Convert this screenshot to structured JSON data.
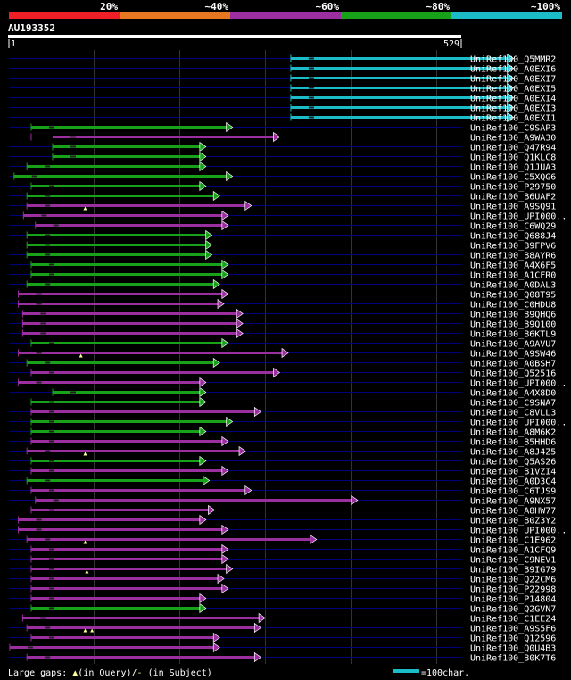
{
  "chart_data": {
    "type": "alignment-overview",
    "title": "AU193352",
    "query_range": [
      1,
      529
    ],
    "scale_labels": [
      "1",
      "529"
    ],
    "identity_bins": [
      {
        "label": "20%",
        "color": "#ee1f26"
      },
      {
        "label": "~40%",
        "color": "#e87722"
      },
      {
        "label": "~60%",
        "color": "#9b2fa0"
      },
      {
        "label": "~80%",
        "color": "#17a219"
      },
      {
        "label": "~100%",
        "color": "#1bbcc8"
      }
    ],
    "legend": {
      "gaps_text": "Large gaps: ",
      "gaps_query": "(in Query)/",
      "gaps_subject": " (in Subject)",
      "scale_text": "=100char."
    },
    "hits": [
      {
        "name": "UniRef100_Q5MMR2",
        "start": 330,
        "end": 590,
        "bin": 4,
        "open_end": 330,
        "gaps": []
      },
      {
        "name": "UniRef100_A0EXI6",
        "start": 330,
        "end": 590,
        "bin": 4,
        "open_end": 330,
        "gaps": []
      },
      {
        "name": "UniRef100_A0EXI7",
        "start": 330,
        "end": 590,
        "bin": 4,
        "open_end": 330,
        "gaps": []
      },
      {
        "name": "UniRef100_A0EXI5",
        "start": 330,
        "end": 590,
        "bin": 4,
        "open_end": 330,
        "gaps": []
      },
      {
        "name": "UniRef100_A0EXI4",
        "start": 330,
        "end": 590,
        "bin": 4,
        "open_end": 330,
        "gaps": []
      },
      {
        "name": "UniRef100_A0EXI3",
        "start": 330,
        "end": 590,
        "bin": 4,
        "open_end": 330,
        "gaps": []
      },
      {
        "name": "UniRef100_A0EXI1",
        "start": 330,
        "end": 590,
        "bin": 4,
        "open_end": 330,
        "gaps": []
      },
      {
        "name": "UniRef100_C9SAP3",
        "start": 27,
        "end": 262,
        "bin": 3,
        "open_end": 27,
        "gaps": []
      },
      {
        "name": "UniRef100_A9WA30",
        "start": 52,
        "end": 317,
        "bin": 2,
        "open_end": 27,
        "gaps": []
      },
      {
        "name": "UniRef100_Q47R94",
        "start": 52,
        "end": 231,
        "bin": 3,
        "open_end": 52,
        "gaps": []
      },
      {
        "name": "UniRef100_Q1KLC8",
        "start": 52,
        "end": 231,
        "bin": 3,
        "open_end": 52,
        "gaps": []
      },
      {
        "name": "UniRef100_Q1JUA3",
        "start": 22,
        "end": 231,
        "bin": 3,
        "open_end": 22,
        "gaps": []
      },
      {
        "name": "UniRef100_C5XQG6",
        "start": 7,
        "end": 262,
        "bin": 3,
        "open_end": 7,
        "gaps": []
      },
      {
        "name": "UniRef100_P29750",
        "start": 27,
        "end": 231,
        "bin": 3,
        "open_end": 27,
        "gaps": []
      },
      {
        "name": "UniRef100_B6UAF2",
        "start": 22,
        "end": 247,
        "bin": 3,
        "open_end": 22,
        "gaps": []
      },
      {
        "name": "UniRef100_A9SQ91",
        "start": 22,
        "end": 284,
        "bin": 2,
        "open_end": 22,
        "gaps": [
          90
        ]
      },
      {
        "name": "UniRef100_UPI000..",
        "start": 18,
        "end": 257,
        "bin": 2,
        "open_end": 18,
        "gaps": []
      },
      {
        "name": "UniRef100_C6WQ29",
        "start": 32,
        "end": 257,
        "bin": 2,
        "open_end": 32,
        "gaps": []
      },
      {
        "name": "UniRef100_Q688J4",
        "start": 22,
        "end": 238,
        "bin": 3,
        "open_end": 22,
        "gaps": []
      },
      {
        "name": "UniRef100_B9FPV6",
        "start": 22,
        "end": 238,
        "bin": 3,
        "open_end": 22,
        "gaps": []
      },
      {
        "name": "UniRef100_B8AYR6",
        "start": 22,
        "end": 238,
        "bin": 3,
        "open_end": 22,
        "gaps": []
      },
      {
        "name": "UniRef100_A4X6F5",
        "start": 27,
        "end": 257,
        "bin": 3,
        "open_end": 27,
        "gaps": []
      },
      {
        "name": "UniRef100_A1CFR0",
        "start": 27,
        "end": 257,
        "bin": 3,
        "open_end": 27,
        "gaps": []
      },
      {
        "name": "UniRef100_A0DAL3",
        "start": 22,
        "end": 247,
        "bin": 3,
        "open_end": 22,
        "gaps": []
      },
      {
        "name": "UniRef100_Q08T95",
        "start": 12,
        "end": 257,
        "bin": 2,
        "open_end": 12,
        "gaps": []
      },
      {
        "name": "UniRef100_C0HDU8",
        "start": 12,
        "end": 252,
        "bin": 2,
        "open_end": 12,
        "gaps": []
      },
      {
        "name": "UniRef100_B9QHQ6",
        "start": 17,
        "end": 274,
        "bin": 2,
        "open_end": 17,
        "gaps": []
      },
      {
        "name": "UniRef100_B9Q100",
        "start": 17,
        "end": 274,
        "bin": 2,
        "open_end": 17,
        "gaps": []
      },
      {
        "name": "UniRef100_B6KTL9",
        "start": 17,
        "end": 274,
        "bin": 2,
        "open_end": 17,
        "gaps": []
      },
      {
        "name": "UniRef100_A9AVU7",
        "start": 27,
        "end": 257,
        "bin": 3,
        "open_end": 27,
        "gaps": []
      },
      {
        "name": "UniRef100_A9SW46",
        "start": 12,
        "end": 327,
        "bin": 2,
        "open_end": 12,
        "gaps": [
          85
        ]
      },
      {
        "name": "UniRef100_A0BSH7",
        "start": 22,
        "end": 247,
        "bin": 3,
        "open_end": 22,
        "gaps": []
      },
      {
        "name": "UniRef100_Q52516",
        "start": 27,
        "end": 317,
        "bin": 2,
        "open_end": 27,
        "gaps": []
      },
      {
        "name": "UniRef100_UPI000..",
        "start": 12,
        "end": 231,
        "bin": 2,
        "open_end": 12,
        "gaps": []
      },
      {
        "name": "UniRef100_A4X8D0",
        "start": 52,
        "end": 231,
        "bin": 3,
        "open_end": 52,
        "gaps": []
      },
      {
        "name": "UniRef100_C9SNA7",
        "start": 27,
        "end": 231,
        "bin": 3,
        "open_end": 27,
        "gaps": []
      },
      {
        "name": "UniRef100_C8VLL3",
        "start": 27,
        "end": 295,
        "bin": 2,
        "open_end": 27,
        "gaps": []
      },
      {
        "name": "UniRef100_UPI000..",
        "start": 27,
        "end": 262,
        "bin": 3,
        "open_end": 27,
        "gaps": []
      },
      {
        "name": "UniRef100_A8M6K2",
        "start": 27,
        "end": 231,
        "bin": 3,
        "open_end": 27,
        "gaps": []
      },
      {
        "name": "UniRef100_B5HHD6",
        "start": 27,
        "end": 257,
        "bin": 2,
        "open_end": 27,
        "gaps": []
      },
      {
        "name": "UniRef100_A8J4Z5",
        "start": 22,
        "end": 277,
        "bin": 2,
        "open_end": 22,
        "gaps": [
          90
        ]
      },
      {
        "name": "UniRef100_Q5AS26",
        "start": 27,
        "end": 231,
        "bin": 3,
        "open_end": 27,
        "gaps": []
      },
      {
        "name": "UniRef100_B1VZI4",
        "start": 27,
        "end": 257,
        "bin": 2,
        "open_end": 27,
        "gaps": []
      },
      {
        "name": "UniRef100_A0D3C4",
        "start": 22,
        "end": 235,
        "bin": 3,
        "open_end": 22,
        "gaps": []
      },
      {
        "name": "UniRef100_C6TJS9",
        "start": 27,
        "end": 284,
        "bin": 2,
        "open_end": 27,
        "gaps": []
      },
      {
        "name": "UniRef100_A9NX57",
        "start": 32,
        "end": 408,
        "bin": 2,
        "open_end": 32,
        "gaps": []
      },
      {
        "name": "UniRef100_A8HW77",
        "start": 27,
        "end": 241,
        "bin": 2,
        "open_end": 27,
        "gaps": []
      },
      {
        "name": "UniRef100_B0Z3Y2",
        "start": 12,
        "end": 231,
        "bin": 2,
        "open_end": 12,
        "gaps": []
      },
      {
        "name": "UniRef100_UPI000..",
        "start": 12,
        "end": 257,
        "bin": 2,
        "open_end": 12,
        "gaps": []
      },
      {
        "name": "UniRef100_C1E962",
        "start": 22,
        "end": 360,
        "bin": 2,
        "open_end": 22,
        "gaps": [
          90
        ]
      },
      {
        "name": "UniRef100_A1CFQ9",
        "start": 27,
        "end": 257,
        "bin": 2,
        "open_end": 27,
        "gaps": []
      },
      {
        "name": "UniRef100_C9NEV1",
        "start": 27,
        "end": 257,
        "bin": 2,
        "open_end": 27,
        "gaps": []
      },
      {
        "name": "UniRef100_B9IG79",
        "start": 27,
        "end": 262,
        "bin": 2,
        "open_end": 27,
        "gaps": [
          92
        ]
      },
      {
        "name": "UniRef100_Q22CM6",
        "start": 27,
        "end": 252,
        "bin": 2,
        "open_end": 27,
        "gaps": []
      },
      {
        "name": "UniRef100_P22998",
        "start": 27,
        "end": 257,
        "bin": 2,
        "open_end": 27,
        "gaps": []
      },
      {
        "name": "UniRef100_P14804",
        "start": 27,
        "end": 231,
        "bin": 2,
        "open_end": 27,
        "gaps": []
      },
      {
        "name": "UniRef100_Q2GVN7",
        "start": 27,
        "end": 231,
        "bin": 3,
        "open_end": 27,
        "gaps": []
      },
      {
        "name": "UniRef100_C1EEZ4",
        "start": 17,
        "end": 300,
        "bin": 2,
        "open_end": 17,
        "gaps": []
      },
      {
        "name": "UniRef100_A9S5F6",
        "start": 22,
        "end": 295,
        "bin": 2,
        "open_end": 22,
        "gaps": [
          90,
          98
        ]
      },
      {
        "name": "UniRef100_Q12596",
        "start": 27,
        "end": 247,
        "bin": 2,
        "open_end": 27,
        "gaps": []
      },
      {
        "name": "UniRef100_Q0U4B3",
        "start": 2,
        "end": 247,
        "bin": 2,
        "open_end": 2,
        "gaps": []
      },
      {
        "name": "UniRef100_B0K7T6",
        "start": 22,
        "end": 295,
        "bin": 2,
        "open_end": 22,
        "gaps": []
      }
    ]
  }
}
